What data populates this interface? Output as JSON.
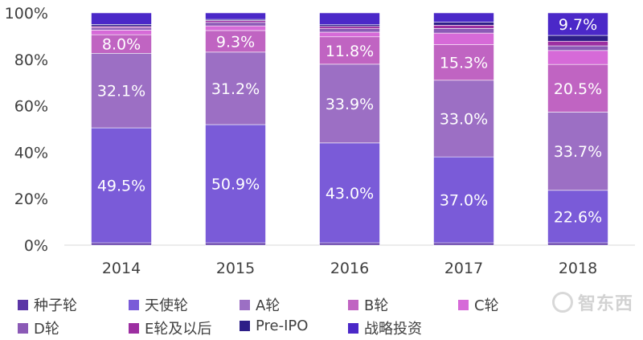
{
  "chart_data": {
    "type": "bar",
    "stacked": true,
    "title": "",
    "xlabel": "",
    "ylabel": "",
    "ylim": [
      0,
      100
    ],
    "yticks": [
      "0%",
      "20%",
      "40%",
      "60%",
      "80%",
      "100%"
    ],
    "categories": [
      "2014",
      "2015",
      "2016",
      "2017",
      "2018"
    ],
    "series": [
      {
        "name": "种子轮",
        "color": "#5b35a6",
        "values": [
          1.0,
          1.0,
          1.0,
          1.0,
          1.0
        ],
        "labels": [
          "",
          "",
          "",
          "",
          ""
        ]
      },
      {
        "name": "天使轮",
        "color": "#7a5bd8",
        "values": [
          49.5,
          50.9,
          43.0,
          37.0,
          22.6
        ],
        "labels": [
          "49.5%",
          "50.9%",
          "43.0%",
          "37.0%",
          "22.6%"
        ]
      },
      {
        "name": "A轮",
        "color": "#9c6fc4",
        "values": [
          32.1,
          31.2,
          33.9,
          33.0,
          33.7
        ],
        "labels": [
          "32.1%",
          "31.2%",
          "33.9%",
          "33.0%",
          "33.7%"
        ]
      },
      {
        "name": "B轮",
        "color": "#c064c2",
        "values": [
          8.0,
          9.3,
          11.8,
          15.3,
          20.5
        ],
        "labels": [
          "8.0%",
          "9.3%",
          "11.8%",
          "15.3%",
          "20.5%"
        ]
      },
      {
        "name": "C轮",
        "color": "#d66ad8",
        "values": [
          2.0,
          2.0,
          2.0,
          5.0,
          6.0
        ],
        "labels": [
          "",
          "",
          "",
          "",
          ""
        ]
      },
      {
        "name": "D轮",
        "color": "#8b5ab6",
        "values": [
          1.0,
          1.5,
          1.5,
          2.0,
          2.0
        ],
        "labels": [
          "",
          "",
          "",
          "",
          ""
        ]
      },
      {
        "name": "E轮及以后",
        "color": "#9c2fa1",
        "values": [
          0.6,
          0.8,
          1.0,
          1.4,
          2.0
        ],
        "labels": [
          "",
          "",
          "",
          "",
          ""
        ]
      },
      {
        "name": "Pre-IPO",
        "color": "#2d1e87",
        "values": [
          0.8,
          0.5,
          0.7,
          1.3,
          2.5
        ],
        "labels": [
          "",
          "",
          "",
          "",
          ""
        ]
      },
      {
        "name": "战略投资",
        "color": "#4b28c8",
        "values": [
          5.0,
          2.8,
          5.1,
          4.0,
          9.7
        ],
        "labels": [
          "",
          "",
          "",
          "",
          "9.7%"
        ]
      }
    ],
    "legend": {
      "placement": "bottom"
    }
  },
  "watermark": {
    "text": "智东西"
  }
}
